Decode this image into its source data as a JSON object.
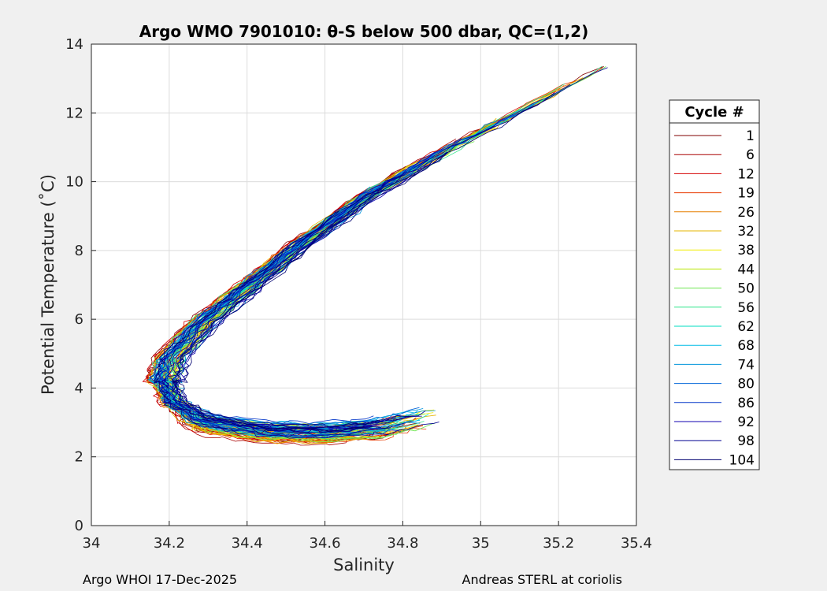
{
  "chart_data": {
    "type": "line",
    "title": "Argo WMO 7901010: θ-S below 500 dbar,  QC=(1,2)",
    "xlabel": "Salinity",
    "ylabel": "Potential Temperature (˚C)",
    "xlim": [
      34,
      35.4
    ],
    "ylim": [
      0,
      14
    ],
    "xticks": [
      "34",
      "34.2",
      "34.4",
      "34.6",
      "34.8",
      "35",
      "35.2",
      "35.4"
    ],
    "yticks": [
      "0",
      "2",
      "4",
      "6",
      "8",
      "10",
      "12",
      "14"
    ],
    "grid": true,
    "legend": {
      "title": "Cycle #",
      "placement": "right-outside",
      "entries": [
        {
          "label": "1",
          "color": "#800000"
        },
        {
          "label": "6",
          "color": "#a80000"
        },
        {
          "label": "12",
          "color": "#d40000"
        },
        {
          "label": "19",
          "color": "#e83a00"
        },
        {
          "label": "26",
          "color": "#e67e00"
        },
        {
          "label": "32",
          "color": "#e6b400"
        },
        {
          "label": "38",
          "color": "#f2ee00"
        },
        {
          "label": "44",
          "color": "#b8e600"
        },
        {
          "label": "50",
          "color": "#6ee650"
        },
        {
          "label": "56",
          "color": "#2ee68a"
        },
        {
          "label": "62",
          "color": "#00dcc0"
        },
        {
          "label": "68",
          "color": "#00bce6"
        },
        {
          "label": "74",
          "color": "#0094dc"
        },
        {
          "label": "80",
          "color": "#0064d8"
        },
        {
          "label": "86",
          "color": "#0034c8"
        },
        {
          "label": "92",
          "color": "#1000b0"
        },
        {
          "label": "98",
          "color": "#000090"
        },
        {
          "label": "104",
          "color": "#000070"
        }
      ]
    },
    "series_shape": {
      "upper_branch": [
        [
          35.36,
          13.6
        ],
        [
          35.1,
          12.0
        ],
        [
          34.9,
          10.8
        ],
        [
          34.72,
          9.6
        ],
        [
          34.55,
          8.2
        ],
        [
          34.42,
          7.0
        ],
        [
          34.3,
          5.9
        ],
        [
          34.22,
          4.9
        ],
        [
          34.2,
          4.2
        ]
      ],
      "lower_branch": [
        [
          34.2,
          4.2
        ],
        [
          34.22,
          3.6
        ],
        [
          34.3,
          3.1
        ],
        [
          34.45,
          2.85
        ],
        [
          34.6,
          2.8
        ],
        [
          34.75,
          2.95
        ],
        [
          34.88,
          3.3
        ]
      ]
    }
  },
  "footer": {
    "left": "Argo WHOI 17-Dec-2025",
    "right": "Andreas STERL at coriolis"
  }
}
